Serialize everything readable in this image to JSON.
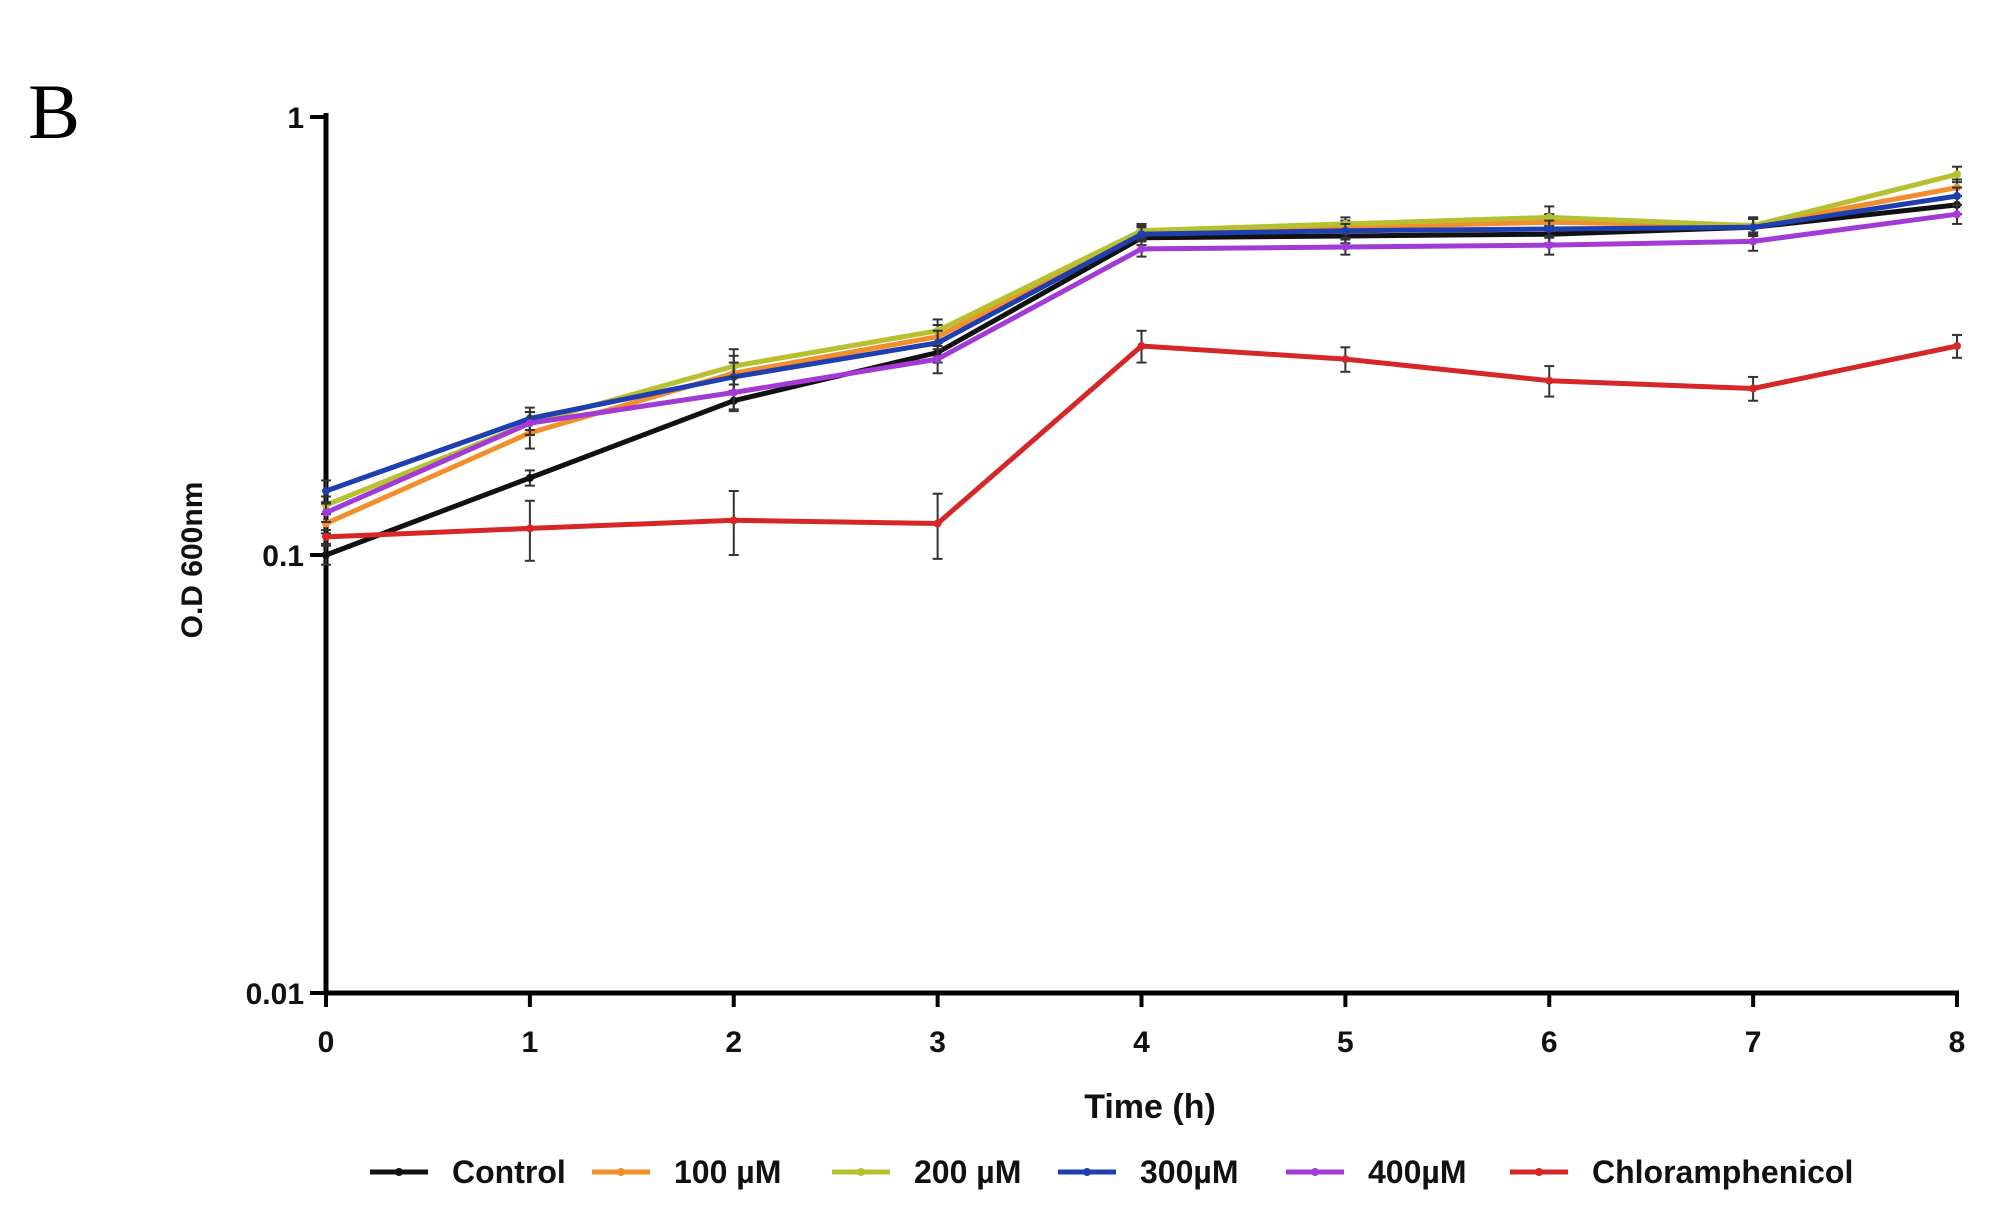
{
  "panel_label": "B",
  "chart_data": {
    "type": "line",
    "title": "",
    "xlabel": "Time (h)",
    "ylabel": "O.D 600nm",
    "yscale": "log",
    "ylim": [
      0.01,
      1
    ],
    "xlim": [
      0,
      8
    ],
    "x_ticks": [
      0,
      1,
      2,
      3,
      4,
      5,
      6,
      7,
      8
    ],
    "x_tick_labels": [
      "0",
      "1",
      "2",
      "3",
      "4",
      "5",
      "6",
      "7",
      "8"
    ],
    "y_ticks": [
      0.01,
      0.1,
      1
    ],
    "y_tick_labels": [
      "0.01",
      "0.1",
      "1"
    ],
    "grid": false,
    "legend_position": "bottom",
    "x": [
      0,
      1,
      2,
      3,
      4,
      5,
      6,
      7,
      8
    ],
    "series": [
      {
        "name": "Control",
        "color": "#111111",
        "values": [
          0.1,
          0.15,
          0.225,
          0.29,
          0.53,
          0.535,
          0.54,
          0.56,
          0.63
        ],
        "errors": [
          0.005,
          0.006,
          0.012,
          0.015,
          0.02,
          0.02,
          0.025,
          0.025,
          0.03
        ]
      },
      {
        "name": "100 µM",
        "color": "#F28E2B",
        "values": [
          0.118,
          0.19,
          0.26,
          0.315,
          0.545,
          0.56,
          0.575,
          0.565,
          0.69
        ],
        "errors": [
          0.006,
          0.015,
          0.025,
          0.02,
          0.02,
          0.02,
          0.025,
          0.025,
          0.03
        ]
      },
      {
        "name": "200 µM",
        "color": "#B8C030",
        "values": [
          0.13,
          0.2,
          0.27,
          0.325,
          0.55,
          0.57,
          0.59,
          0.565,
          0.74
        ],
        "errors": [
          0.006,
          0.012,
          0.025,
          0.02,
          0.02,
          0.02,
          0.035,
          0.025,
          0.03
        ]
      },
      {
        "name": "300µM",
        "color": "#1F3FB0",
        "values": [
          0.14,
          0.205,
          0.255,
          0.305,
          0.54,
          0.55,
          0.555,
          0.56,
          0.66
        ],
        "errors": [
          0.008,
          0.012,
          0.02,
          0.02,
          0.02,
          0.02,
          0.025,
          0.025,
          0.03
        ]
      },
      {
        "name": "400µM",
        "color": "#A23BD6",
        "values": [
          0.125,
          0.2,
          0.235,
          0.28,
          0.5,
          0.505,
          0.51,
          0.52,
          0.6
        ],
        "errors": [
          0.006,
          0.012,
          0.02,
          0.02,
          0.02,
          0.02,
          0.025,
          0.025,
          0.03
        ]
      },
      {
        "name": "Chloramphenicol",
        "color": "#D62728",
        "values": [
          0.11,
          0.115,
          0.12,
          0.118,
          0.3,
          0.28,
          0.25,
          0.24,
          0.3
        ],
        "errors": [
          0.004,
          0.018,
          0.02,
          0.02,
          0.025,
          0.018,
          0.02,
          0.015,
          0.018
        ]
      }
    ]
  }
}
